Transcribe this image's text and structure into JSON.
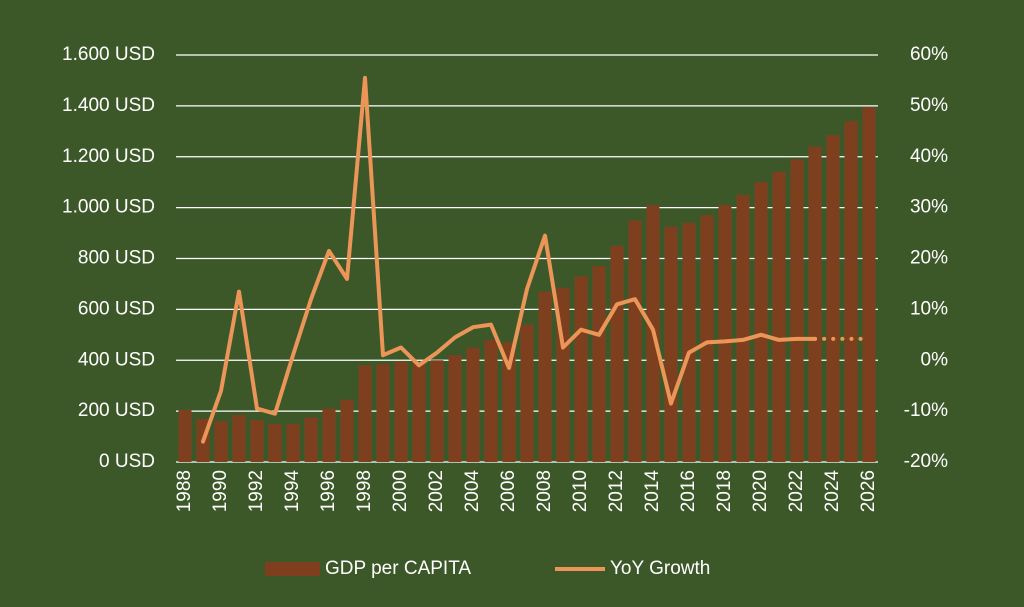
{
  "chart_data": {
    "type": "bar_line",
    "categories": [
      "1988",
      null,
      "1990",
      null,
      "1992",
      null,
      "1994",
      null,
      "1996",
      null,
      "1998",
      null,
      "2000",
      null,
      "2002",
      null,
      "2004",
      null,
      "2006",
      null,
      "2008",
      null,
      "2010",
      null,
      "2012",
      null,
      "2014",
      null,
      "2016",
      null,
      "2018",
      null,
      "2020",
      null,
      "2022",
      null,
      "2024",
      null,
      "2026"
    ],
    "series": [
      {
        "name": "GDP per CAPITA",
        "type": "bar",
        "color": "#7e3f1e",
        "axis": "y",
        "values": [
          205,
          170,
          160,
          185,
          165,
          150,
          150,
          175,
          210,
          245,
          380,
          385,
          395,
          390,
          400,
          420,
          450,
          480,
          470,
          540,
          670,
          685,
          730,
          770,
          850,
          950,
          1010,
          925,
          940,
          970,
          1010,
          1050,
          1100,
          1140,
          1190,
          1240,
          1285,
          1340,
          1395
        ]
      },
      {
        "name": "YoY Growth",
        "type": "line",
        "color": "#ec9558",
        "axis": "y2",
        "dashed_from": 35,
        "values": [
          null,
          -16,
          -6,
          13.5,
          -9.5,
          -10.5,
          1,
          12,
          21.5,
          16,
          55.5,
          1,
          2.5,
          -1,
          1.5,
          4.5,
          6.5,
          7,
          -1.5,
          14,
          24.5,
          2.5,
          6,
          5,
          11,
          12,
          6,
          -8.5,
          1.5,
          3.5,
          3.7,
          4,
          5,
          4,
          4.2,
          4.2,
          4.2,
          4.2,
          4.2
        ]
      }
    ],
    "ylim": [
      0,
      1600
    ],
    "yticks": [
      {
        "value": 0,
        "label": "0 USD"
      },
      {
        "value": 200,
        "label": "200 USD"
      },
      {
        "value": 400,
        "label": "400 USD"
      },
      {
        "value": 600,
        "label": "600 USD"
      },
      {
        "value": 800,
        "label": "800 USD"
      },
      {
        "value": 1000,
        "label": "1.000 USD"
      },
      {
        "value": 1200,
        "label": "1.200 USD"
      },
      {
        "value": 1400,
        "label": "1.400 USD"
      },
      {
        "value": 1600,
        "label": "1.600 USD"
      }
    ],
    "y2lim": [
      -20,
      60
    ],
    "y2ticks": [
      {
        "value": -20,
        "label": "-20%"
      },
      {
        "value": -10,
        "label": "-10%"
      },
      {
        "value": 0,
        "label": "0%"
      },
      {
        "value": 10,
        "label": "10%"
      },
      {
        "value": 20,
        "label": "20%"
      },
      {
        "value": 30,
        "label": "30%"
      },
      {
        "value": 40,
        "label": "40%"
      },
      {
        "value": 50,
        "label": "50%"
      },
      {
        "value": 60,
        "label": "60%"
      }
    ],
    "grid": true
  }
}
